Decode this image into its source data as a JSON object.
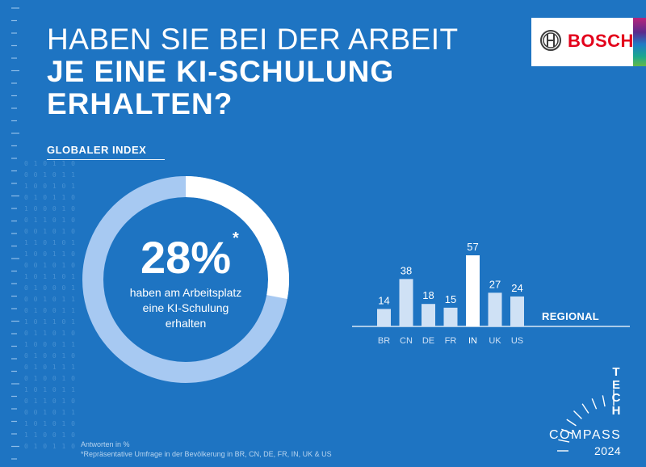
{
  "header": {
    "title_line1": "HABEN SIE BEI DER ARBEIT",
    "title_line2": "JE EINE KI-SCHULUNG",
    "title_line3": "ERHALTEN?"
  },
  "logo": {
    "text": "BOSCH",
    "color": "#e3001b",
    "icon": "bosch-armature-icon"
  },
  "global_index": {
    "label": "GLOBALER INDEX",
    "value_text": "28%",
    "asterisk": "*",
    "caption_line1": "haben am Arbeitsplatz",
    "caption_line2": "eine KI-Schulung",
    "caption_line3": "erhalten"
  },
  "regional": {
    "label": "REGIONAL"
  },
  "footnote": {
    "line1": "Antworten in %",
    "line2": "*Repräsentative Umfrage in der Bevölkerung in BR, CN, DE, FR, IN, UK & US"
  },
  "brand_mark": {
    "letters": [
      "T",
      "E",
      "C",
      "H"
    ],
    "compass": "COMPASS",
    "year": "2024"
  },
  "colors": {
    "background": "#1e74c2",
    "donut_highlight": "#ffffff",
    "donut_rest": "#a7c9f2",
    "bar": "#cfe1f5",
    "bar_highlight": "#ffffff",
    "tick_label": "#cfe1f5"
  },
  "chart_data": [
    {
      "type": "pie",
      "title": "GLOBALER INDEX",
      "values": [
        28,
        72
      ],
      "highlight_index": 0
    },
    {
      "type": "bar",
      "title": "REGIONAL",
      "categories": [
        "BR",
        "CN",
        "DE",
        "FR",
        "IN",
        "UK",
        "US"
      ],
      "values": [
        14,
        38,
        18,
        15,
        57,
        27,
        24
      ],
      "highlight_category": "IN",
      "ylim": [
        0,
        60
      ],
      "grid": false
    }
  ]
}
